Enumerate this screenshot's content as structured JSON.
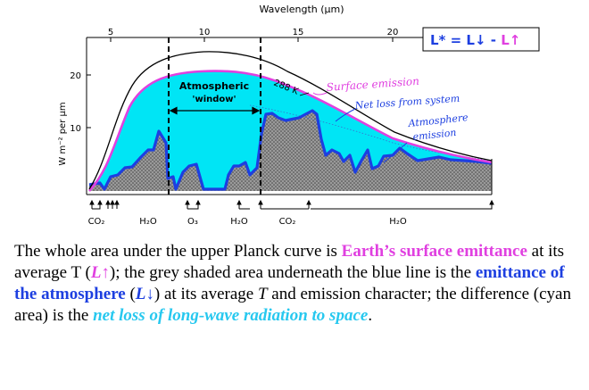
{
  "figure": {
    "top_axis_label": "Wavelength (μm)",
    "top_ticks": [
      "5",
      "10",
      "15",
      "20"
    ],
    "y_axis_label": "W m⁻² per μm",
    "y_ticks": [
      "20",
      "10"
    ],
    "formula": {
      "prefix": "L* = ",
      "down": "L↓",
      "minus": " - ",
      "up": "L↑"
    },
    "window_label_line1": "Atmospheric",
    "window_label_line2": "'window'",
    "temperature_label": "288 K",
    "surface_emission_label": "Surface emission",
    "net_loss_label": "Net loss from system",
    "atmosphere_emission_line1": "Atmosphere",
    "atmosphere_emission_line2": "emission",
    "gases": [
      "CO₂",
      "H₂O",
      "O₃",
      "H₂O",
      "CO₂",
      "H₂O"
    ],
    "colors": {
      "surface_curve": "#e040e0",
      "net_loss_fill": "#00e5f5",
      "atmosphere_line": "#1d3fe0",
      "atmosphere_fill": "#8c8c8c"
    }
  },
  "caption": {
    "p1": "The whole area under the upper Planck curve is ",
    "surface_emittance": "Earth’s surface emittance",
    "p2": " at its average T (",
    "l_up": "L↑",
    "p3": "); the grey shaded area underneath the blue line is the ",
    "atmos_emittance": "emittance of the atmosphere",
    "p4": " (",
    "l_down": "L↓",
    "p5": ") at its average ",
    "t": "T",
    "p6": " and emission character; the difference (cyan area) is the ",
    "net_loss": "net loss of long-wave radiation to space",
    "p7": "."
  }
}
